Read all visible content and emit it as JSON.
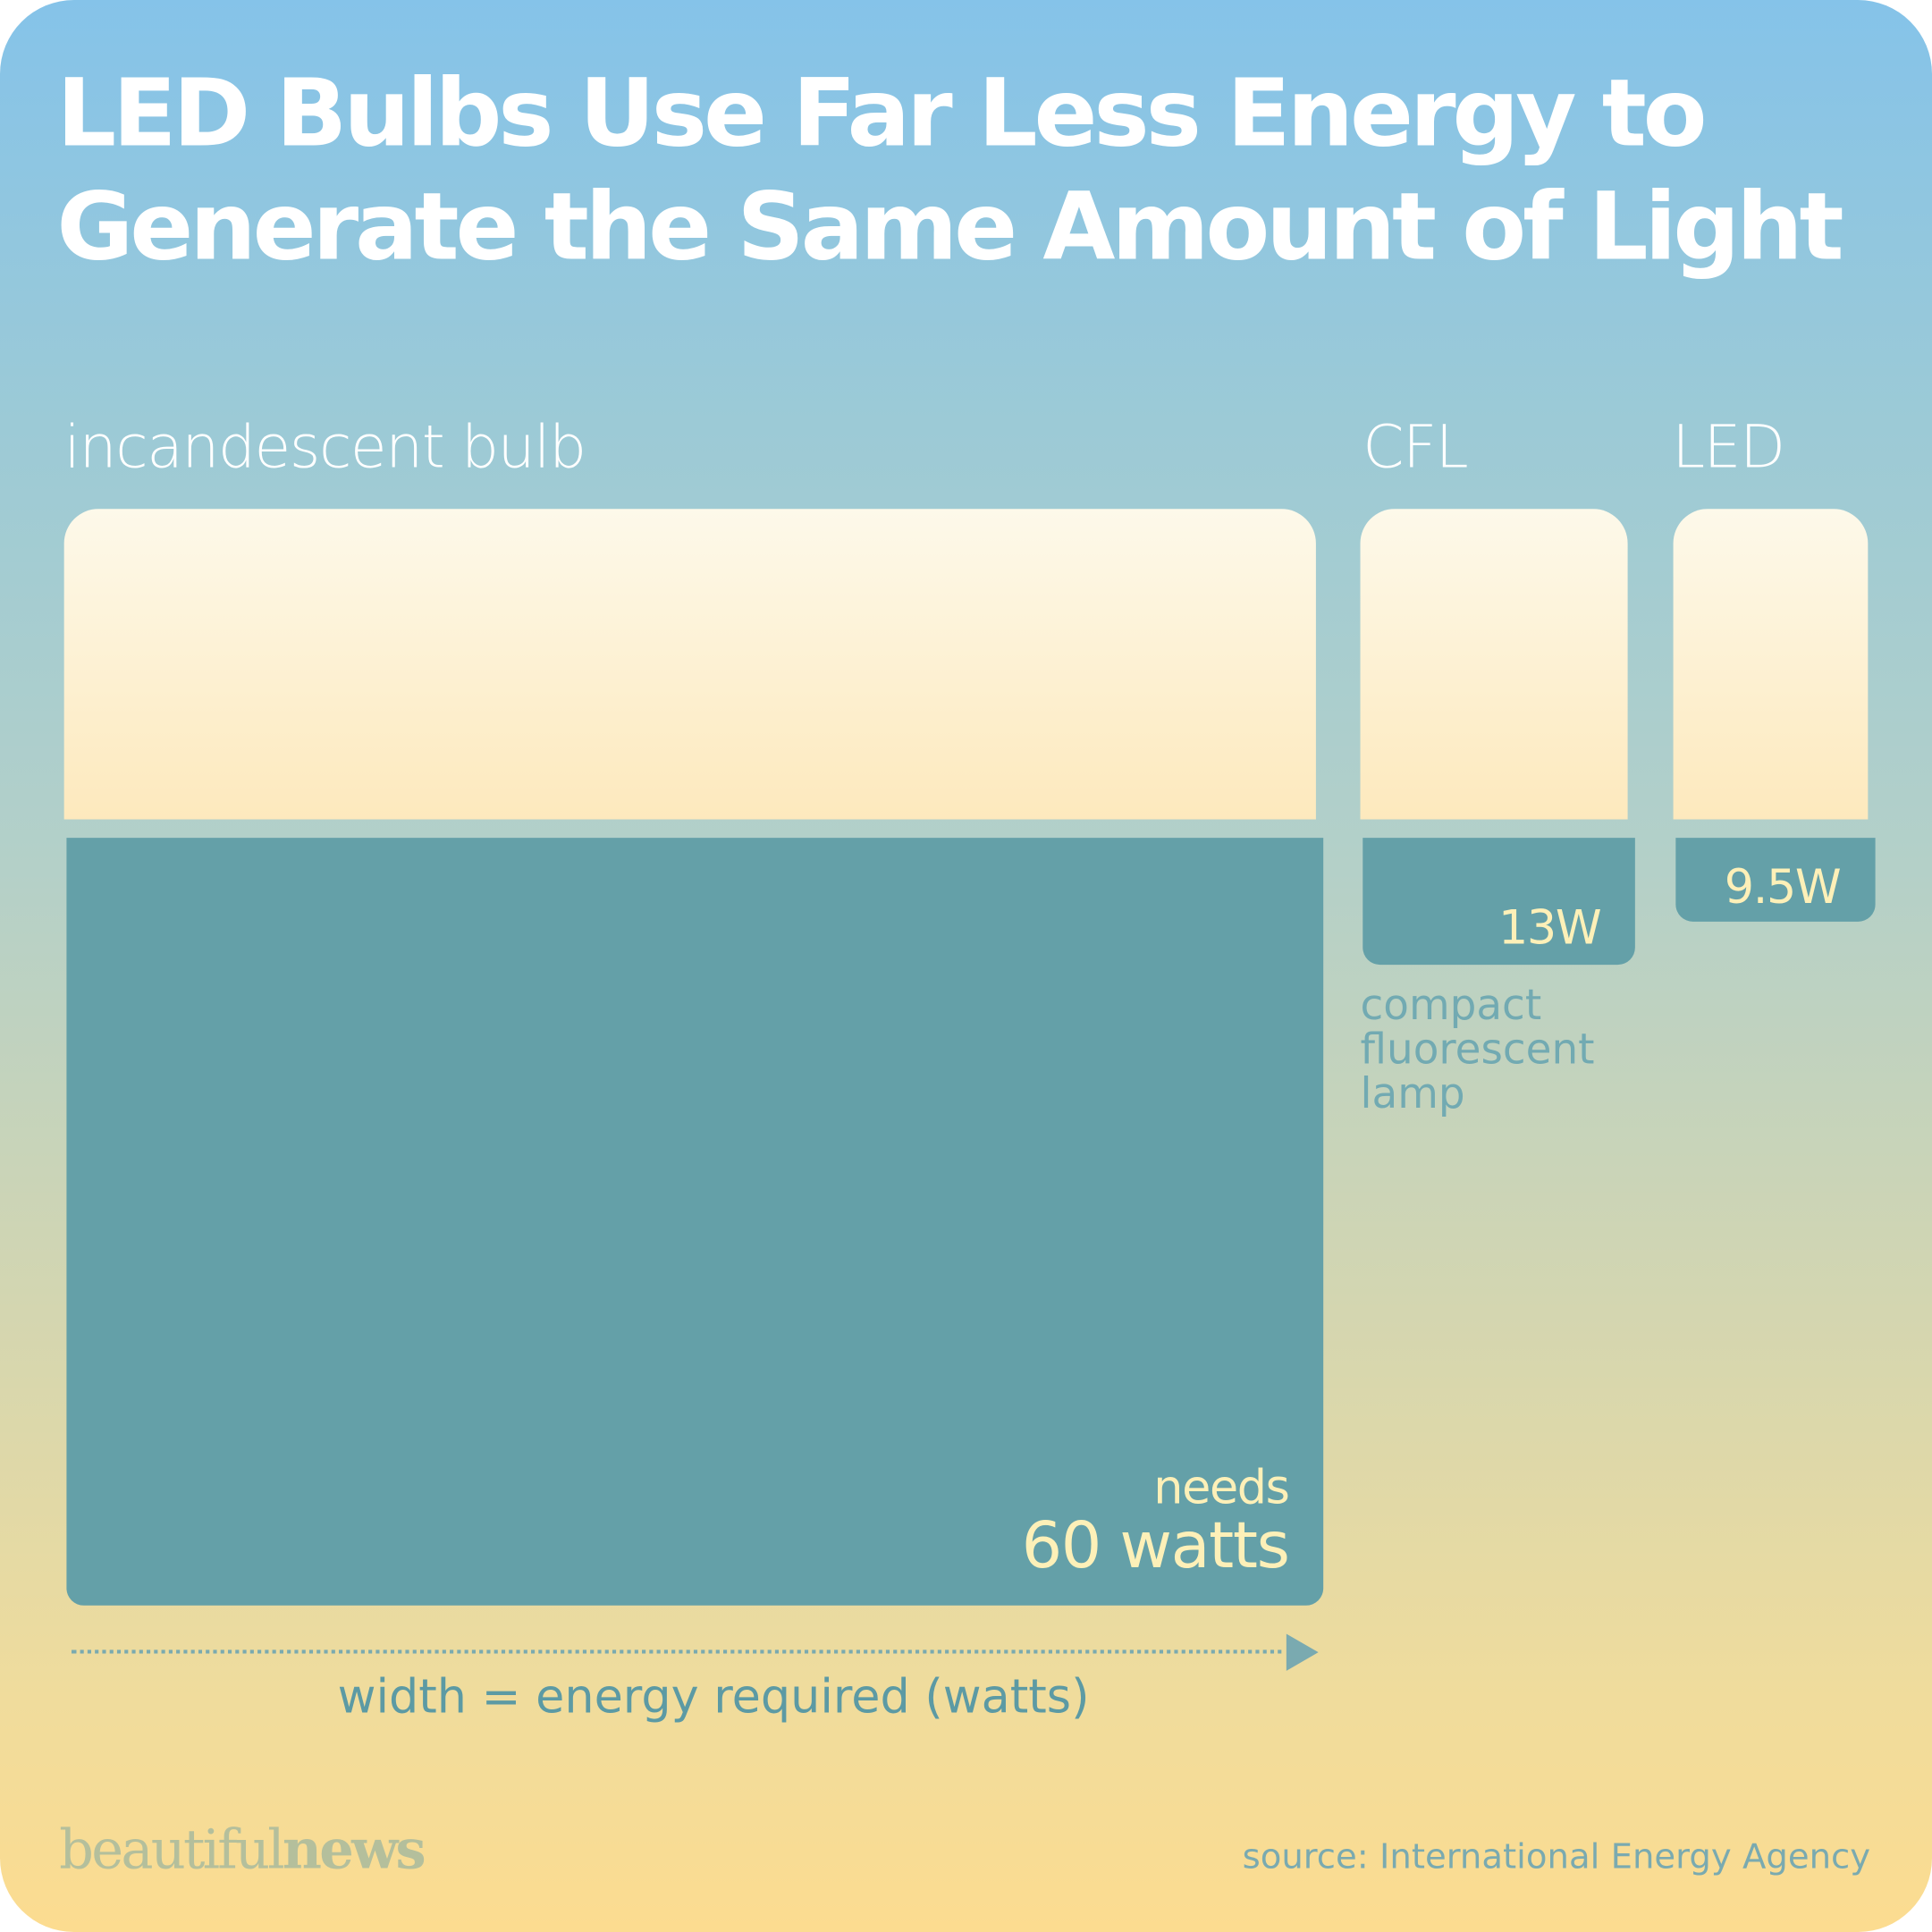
{
  "title_line1": "LED Bulbs Use Far Less Energy to",
  "title_line2": "Generate the Same Amount of Light",
  "chart_data": {
    "type": "bar",
    "categories": [
      "incandescent bulb",
      "CFL",
      "LED"
    ],
    "values": [
      60,
      13,
      9.5
    ],
    "unit": "W",
    "value_labels": [
      "60 watts",
      "13W",
      "9.5W"
    ],
    "value_prefix": "needs",
    "category_note": "compact fluorescent lamp",
    "encoding_label": "width = energy required (watts)"
  },
  "colors": {
    "bar": "#64a0a8",
    "bulb": "#fdf0c8",
    "label_on_bar": "#fdf0b8"
  },
  "branding": {
    "logo_part1": "beautiful",
    "logo_part2": "news"
  },
  "source": "source: International Energy Agency"
}
